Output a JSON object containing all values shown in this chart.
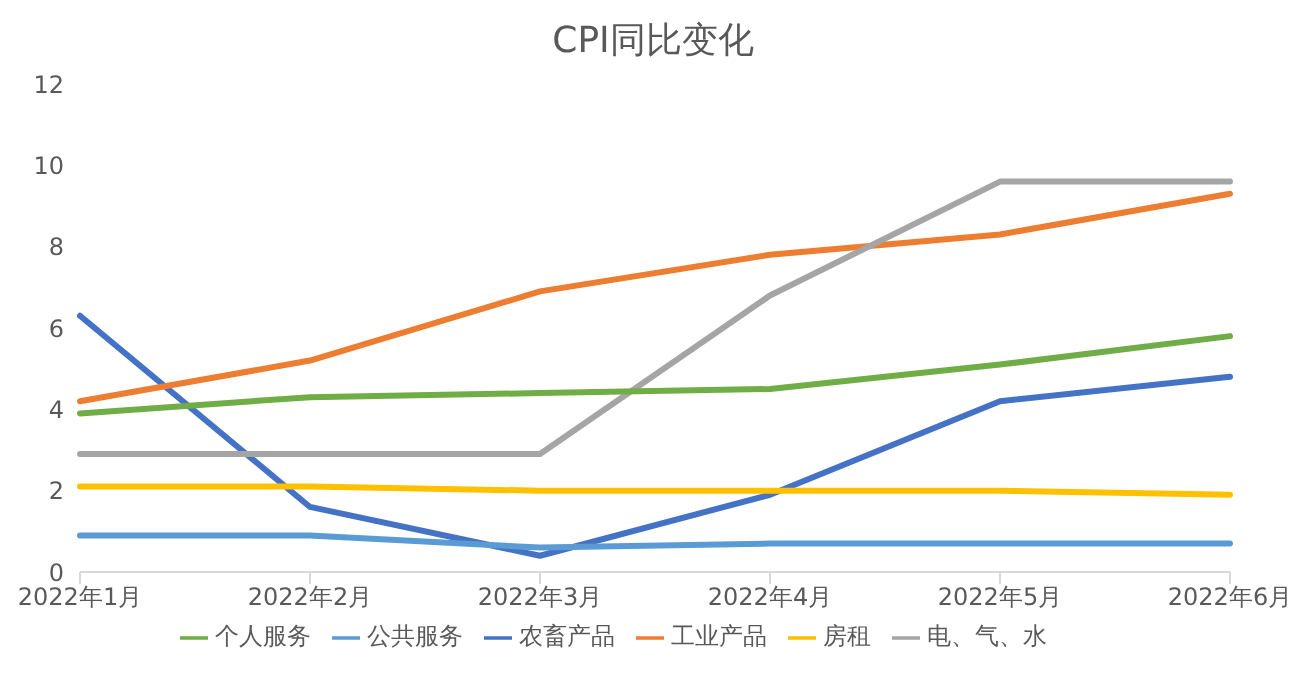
{
  "chart_data": {
    "type": "line",
    "title": "CPI同比变化",
    "categories": [
      "2022年1月",
      "2022年2月",
      "2022年3月",
      "2022年4月",
      "2022年5月",
      "2022年6月"
    ],
    "series": [
      {
        "name": "农畜产品",
        "color": "#4472c4",
        "values": [
          6.3,
          1.6,
          0.4,
          1.9,
          4.2,
          4.8
        ]
      },
      {
        "name": "工业产品",
        "color": "#ed7d31",
        "values": [
          4.2,
          5.2,
          6.9,
          7.8,
          8.3,
          9.3
        ]
      },
      {
        "name": "电、气、水",
        "color": "#a5a5a5",
        "values": [
          2.9,
          2.9,
          2.9,
          6.8,
          9.6,
          9.6
        ]
      },
      {
        "name": "房租",
        "color": "#ffc000",
        "values": [
          2.1,
          2.1,
          2.0,
          2.0,
          2.0,
          1.9
        ]
      },
      {
        "name": "公共服务",
        "color": "#5b9bd5",
        "values": [
          0.9,
          0.9,
          0.6,
          0.7,
          0.7,
          0.7
        ]
      },
      {
        "name": "个人服务",
        "color": "#70ad47",
        "values": [
          3.9,
          4.3,
          4.4,
          4.5,
          5.1,
          5.8
        ]
      }
    ],
    "ylim": [
      0,
      12
    ],
    "yticks": [
      0,
      2,
      4,
      6,
      8,
      10,
      12
    ],
    "grid": false,
    "legend": "bottom",
    "marker": "none",
    "line_style": "solid"
  }
}
